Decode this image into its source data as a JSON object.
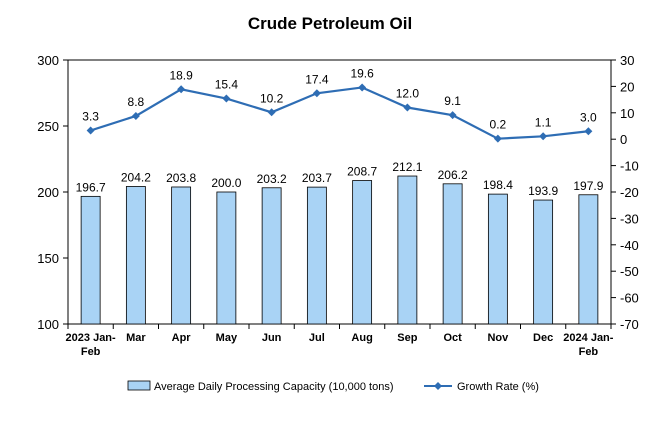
{
  "chart_data": {
    "type": "bar",
    "title": "Crude Petroleum Oil",
    "categories": [
      "2023 Jan-\nFeb",
      "Mar",
      "Apr",
      "May",
      "Jun",
      "Jul",
      "Aug",
      "Sep",
      "Oct",
      "Nov",
      "Dec",
      "2024 Jan-\nFeb"
    ],
    "series": [
      {
        "name": "Average Daily Processing Capacity (10,000 tons)",
        "type": "bar",
        "axis": "left",
        "values": [
          196.7,
          204.2,
          203.8,
          200.0,
          203.2,
          203.7,
          208.7,
          212.1,
          206.2,
          198.4,
          193.9,
          197.9
        ],
        "labels": [
          "196.7",
          "204.2",
          "203.8",
          "200.0",
          "203.2",
          "203.7",
          "208.7",
          "212.1",
          "206.2",
          "198.4",
          "193.9",
          "197.9"
        ]
      },
      {
        "name": "Growth Rate (%)",
        "type": "line",
        "axis": "right",
        "values": [
          3.3,
          8.8,
          18.9,
          15.4,
          10.2,
          17.4,
          19.6,
          12.0,
          9.1,
          0.2,
          1.1,
          3.0
        ],
        "labels": [
          "3.3",
          "8.8",
          "18.9",
          "15.4",
          "10.2",
          "17.4",
          "19.6",
          "12.0",
          "9.1",
          "0.2",
          "1.1",
          "3.0"
        ]
      }
    ],
    "ylim_left": [
      100,
      300
    ],
    "yticks_left": [
      100,
      150,
      200,
      250,
      300
    ],
    "ylim_right": [
      -70,
      30
    ],
    "yticks_right": [
      -70,
      -60,
      -50,
      -40,
      -30,
      -20,
      -10,
      0,
      10,
      20,
      30
    ],
    "legend_position": "bottom",
    "grid": false,
    "colors": {
      "bar_fill": "#a9d3f5",
      "bar_stroke": "#000000",
      "line": "#2e6db4"
    }
  }
}
